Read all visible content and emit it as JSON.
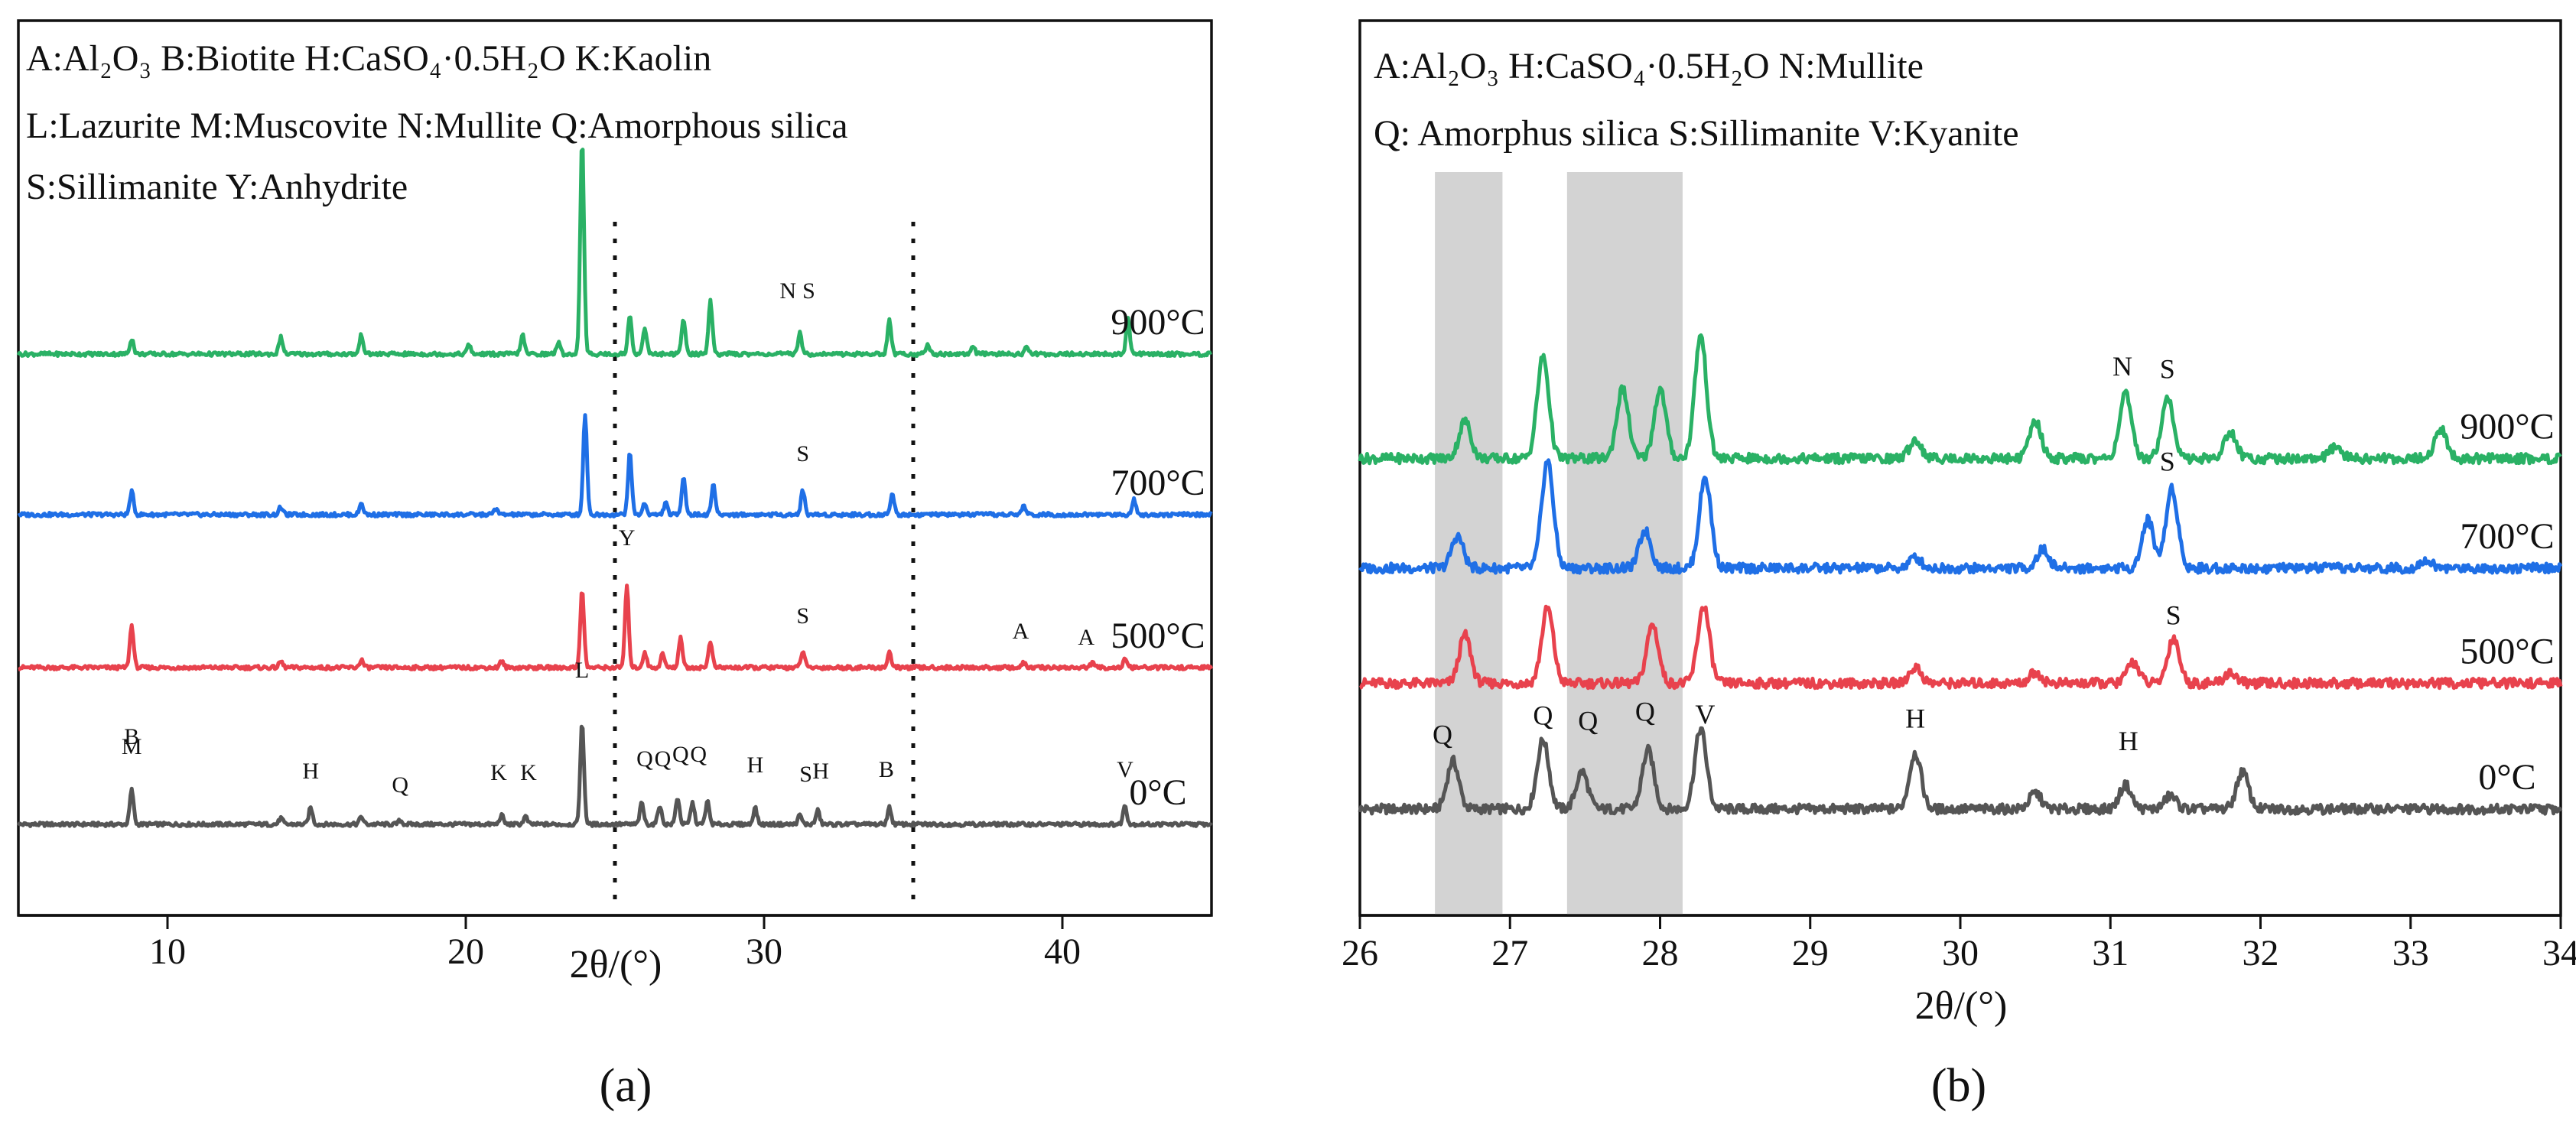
{
  "chart_data": [
    {
      "panel": "(a)",
      "type": "line",
      "xlabel": "2θ/(°)",
      "xlim": [
        5,
        45
      ],
      "xticks": [
        10,
        20,
        30,
        40
      ],
      "yaxis": "stacked offset intensity (no scale)",
      "legend_lines": [
        "A:Al₂O₃ B:Biotite    H:CaSO₄·0.5H₂O  K:Kaolin",
        "L:Lazurite   M:Muscovite  N:Mullite  Q:Amorphous  silica",
        "S:Sillimanite     Y:Anhydrite"
      ],
      "dotted_lines_x": [
        25,
        35
      ],
      "series": [
        {
          "name": "0°C",
          "color": "#555555",
          "offset": 0,
          "peaks": [
            [
              8.8,
              0.45
            ],
            [
              13.8,
              0.08
            ],
            [
              14.8,
              0.22
            ],
            [
              16.5,
              0.1
            ],
            [
              17.8,
              0.05
            ],
            [
              21.2,
              0.12
            ],
            [
              22,
              0.1
            ],
            [
              23.9,
              1.32
            ],
            [
              25.9,
              0.28
            ],
            [
              26.5,
              0.25
            ],
            [
              27.1,
              0.35
            ],
            [
              27.6,
              0.28
            ],
            [
              28.1,
              0.3
            ],
            [
              29.7,
              0.22
            ],
            [
              31.2,
              0.12
            ],
            [
              31.8,
              0.18
            ],
            [
              34.2,
              0.22
            ],
            [
              42.1,
              0.25
            ]
          ],
          "labels": [
            [
              "B",
              8.8,
              1.05
            ],
            [
              "M",
              8.8,
              0.92
            ],
            [
              "H",
              14.8,
              0.6
            ],
            [
              "Q",
              17.8,
              0.42
            ],
            [
              "K",
              21.1,
              0.58
            ],
            [
              "K",
              22.1,
              0.58
            ],
            [
              "L",
              23.9,
              1.92
            ],
            [
              "Q",
              26.0,
              0.76
            ],
            [
              "Q",
              26.6,
              0.76
            ],
            [
              "Q",
              27.2,
              0.82
            ],
            [
              "Q",
              27.8,
              0.82
            ],
            [
              "H",
              29.7,
              0.68
            ],
            [
              "S",
              31.4,
              0.56
            ],
            [
              "H",
              31.9,
              0.6
            ],
            [
              "B",
              34.1,
              0.62
            ],
            [
              "V",
              42.1,
              0.62
            ]
          ]
        },
        {
          "name": "500°C",
          "color": "#e8424d",
          "offset": 2.05,
          "peaks": [
            [
              8.8,
              0.55
            ],
            [
              13.8,
              0.08
            ],
            [
              16.5,
              0.1
            ],
            [
              21.2,
              0.08
            ],
            [
              23.9,
              1.0
            ],
            [
              25.4,
              1.05
            ],
            [
              26.0,
              0.2
            ],
            [
              26.6,
              0.18
            ],
            [
              27.2,
              0.4
            ],
            [
              28.2,
              0.35
            ],
            [
              31.3,
              0.22
            ],
            [
              34.2,
              0.2
            ],
            [
              38.7,
              0.06
            ],
            [
              41,
              0.06
            ],
            [
              42.1,
              0.1
            ]
          ],
          "labels": [
            [
              "Y",
              25.4,
              1.6
            ],
            [
              "S",
              31.3,
              0.58
            ],
            [
              "A",
              38.6,
              0.38
            ],
            [
              "A",
              40.8,
              0.3
            ]
          ]
        },
        {
          "name": "700°C",
          "color": "#1f6fe6",
          "offset": 4.05,
          "peaks": [
            [
              8.8,
              0.3
            ],
            [
              13.8,
              0.1
            ],
            [
              16.5,
              0.15
            ],
            [
              21,
              0.08
            ],
            [
              24.0,
              1.3
            ],
            [
              25.5,
              0.8
            ],
            [
              26.0,
              0.15
            ],
            [
              26.7,
              0.15
            ],
            [
              27.3,
              0.5
            ],
            [
              28.3,
              0.4
            ],
            [
              31.3,
              0.32
            ],
            [
              34.3,
              0.28
            ],
            [
              38.7,
              0.12
            ],
            [
              42.4,
              0.2
            ]
          ],
          "labels": [
            [
              "S",
              31.3,
              0.7
            ]
          ]
        },
        {
          "name": "900°C",
          "color": "#2ab165",
          "offset": 6.15,
          "peaks": [
            [
              8.8,
              0.2
            ],
            [
              13.8,
              0.22
            ],
            [
              16.5,
              0.25
            ],
            [
              20.1,
              0.12
            ],
            [
              21.9,
              0.25
            ],
            [
              23.1,
              0.15
            ],
            [
              23.9,
              2.8
            ],
            [
              25.5,
              0.5
            ],
            [
              26.0,
              0.35
            ],
            [
              27.3,
              0.45
            ],
            [
              28.2,
              0.7
            ],
            [
              31.2,
              0.28
            ],
            [
              34.2,
              0.45
            ],
            [
              35.5,
              0.12
            ],
            [
              37,
              0.1
            ],
            [
              38.8,
              0.1
            ],
            [
              42.2,
              0.45
            ]
          ],
          "labels": [
            [
              "N",
              30.8,
              0.73
            ],
            [
              "S",
              31.5,
              0.73
            ]
          ]
        }
      ]
    },
    {
      "panel": "(b)",
      "type": "line",
      "xlabel": "2θ/(°)",
      "xlim": [
        26,
        34
      ],
      "xticks": [
        26,
        27,
        28,
        29,
        30,
        31,
        32,
        33,
        34
      ],
      "yaxis": "stacked offset intensity (no scale)",
      "legend_lines": [
        "A:Al₂O₃       H:CaSO₄·0.5H₂O  N:Mullite",
        "Q: Amorphus silica   S:Sillimanite  V:Kyanite"
      ],
      "shaded_bands_x": [
        [
          26.5,
          26.95
        ],
        [
          27.38,
          28.15
        ]
      ],
      "series": [
        {
          "name": "0°C",
          "color": "#555555",
          "offset": 0,
          "peaks": [
            [
              26.62,
              0.9
            ],
            [
              27.22,
              1.3
            ],
            [
              27.48,
              0.7
            ],
            [
              27.92,
              1.1
            ],
            [
              28.27,
              1.5
            ],
            [
              29.7,
              1.05
            ],
            [
              30.5,
              0.3
            ],
            [
              31.1,
              0.45
            ],
            [
              31.4,
              0.25
            ],
            [
              31.88,
              0.7
            ]
          ],
          "labels": [
            [
              "Q",
              26.55,
              1.22
            ],
            [
              "Q",
              27.22,
              1.58
            ],
            [
              "Q",
              27.52,
              1.48
            ],
            [
              "Q",
              27.9,
              1.65
            ],
            [
              "V",
              28.3,
              1.6
            ],
            [
              "H",
              29.7,
              1.52
            ],
            [
              "H",
              31.12,
              1.1
            ]
          ]
        },
        {
          "name": "500°C",
          "color": "#e8424d",
          "offset": 2.35,
          "peaks": [
            [
              26.7,
              0.9
            ],
            [
              27.25,
              1.4
            ],
            [
              27.95,
              1.1
            ],
            [
              28.29,
              1.45
            ],
            [
              29.7,
              0.3
            ],
            [
              30.5,
              0.2
            ],
            [
              31.15,
              0.4
            ],
            [
              31.42,
              0.85
            ],
            [
              31.8,
              0.2
            ]
          ],
          "labels": [
            [
              "S",
              31.42,
              1.1
            ]
          ]
        },
        {
          "name": "700°C",
          "color": "#1f6fe6",
          "offset": 4.5,
          "peaks": [
            [
              26.65,
              0.6
            ],
            [
              27.25,
              2.0
            ],
            [
              27.9,
              0.7
            ],
            [
              28.3,
              1.7
            ],
            [
              29.7,
              0.2
            ],
            [
              30.55,
              0.35
            ],
            [
              31.25,
              0.9
            ],
            [
              31.41,
              1.5
            ],
            [
              33.1,
              0.15
            ]
          ],
          "labels": [
            [
              "S",
              31.38,
              1.82
            ]
          ]
        },
        {
          "name": "900°C",
          "color": "#2ab165",
          "offset": 6.55,
          "peaks": [
            [
              26.7,
              0.7
            ],
            [
              27.22,
              1.9
            ],
            [
              27.75,
              1.3
            ],
            [
              28.0,
              1.3
            ],
            [
              28.27,
              2.3
            ],
            [
              29.7,
              0.35
            ],
            [
              30.5,
              0.7
            ],
            [
              31.1,
              1.2
            ],
            [
              31.38,
              1.15
            ],
            [
              31.8,
              0.5
            ],
            [
              32.5,
              0.2
            ],
            [
              33.2,
              0.55
            ]
          ],
          "labels": [
            [
              "N",
              31.08,
              1.55
            ],
            [
              "S",
              31.38,
              1.5
            ]
          ]
        }
      ]
    }
  ]
}
